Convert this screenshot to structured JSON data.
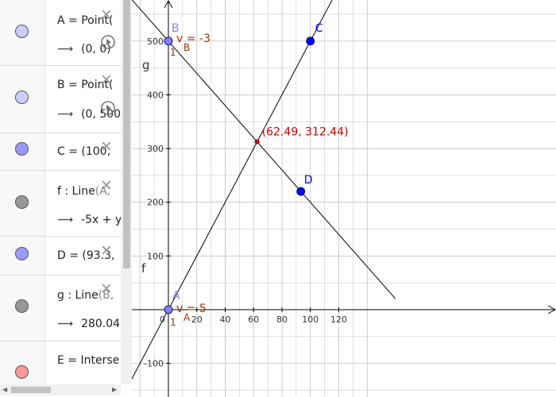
{
  "algebra": {
    "rows": [
      {
        "definition": "A = Point(",
        "value": "(0, 0)",
        "marble_color": "#ccccff"
      },
      {
        "definition": "B = Point(",
        "value": "(0, 500",
        "marble_color": "#ccccff"
      },
      {
        "definition": "C = (100,",
        "value": "",
        "marble_color": "#9999ff"
      },
      {
        "definition": "f : Line",
        "definition_suffix": "(A,",
        "value": "-5x + y",
        "marble_color": "#999999"
      },
      {
        "definition": "D = (93.3,",
        "value": "",
        "marble_color": "#9999ff"
      },
      {
        "definition": "g : Line",
        "definition_suffix": "(B,",
        "value": "280.04:",
        "marble_color": "#999999"
      },
      {
        "definition": "E = Interse",
        "value": "",
        "marble_color": "#ff9999"
      }
    ],
    "arrow_symbol": "⟶",
    "delete_symbol": "✕"
  },
  "graphics": {
    "x_ticks": [
      "0",
      "20",
      "40",
      "60",
      "80",
      "100",
      "120"
    ],
    "y_ticks": [
      "-100",
      "100",
      "200",
      "300",
      "400",
      "500"
    ],
    "points": [
      {
        "name": "A",
        "x": 0,
        "y": 0,
        "color": "#8080ff",
        "label_color": "#8080ff"
      },
      {
        "name": "B",
        "x": 0,
        "y": 500,
        "color": "#8080ff",
        "label_color": "#8080ff"
      },
      {
        "name": "C",
        "x": 100,
        "y": 500,
        "color": "#0000ff",
        "label_color": "#0000ff"
      },
      {
        "name": "D",
        "x": 93.3,
        "y": 220,
        "color": "#0000ff",
        "label_color": "#0000ff"
      }
    ],
    "intersection": {
      "x": 62.49,
      "y": 312.44,
      "label": "(62.49, 312.44)",
      "color": "#cc0000"
    },
    "line_labels": {
      "f": "f",
      "g": "g"
    },
    "slope_labels": {
      "A": {
        "v": "v",
        "text": " = 5",
        "sub": "A",
        "one": "1"
      },
      "B": {
        "v": "v",
        "text": " = -3",
        "sub": "B",
        "one": "1"
      }
    },
    "colors": {
      "grid": "#c0c0c0",
      "axis": "#000000",
      "line": "#000000",
      "slope": "#993300"
    }
  }
}
